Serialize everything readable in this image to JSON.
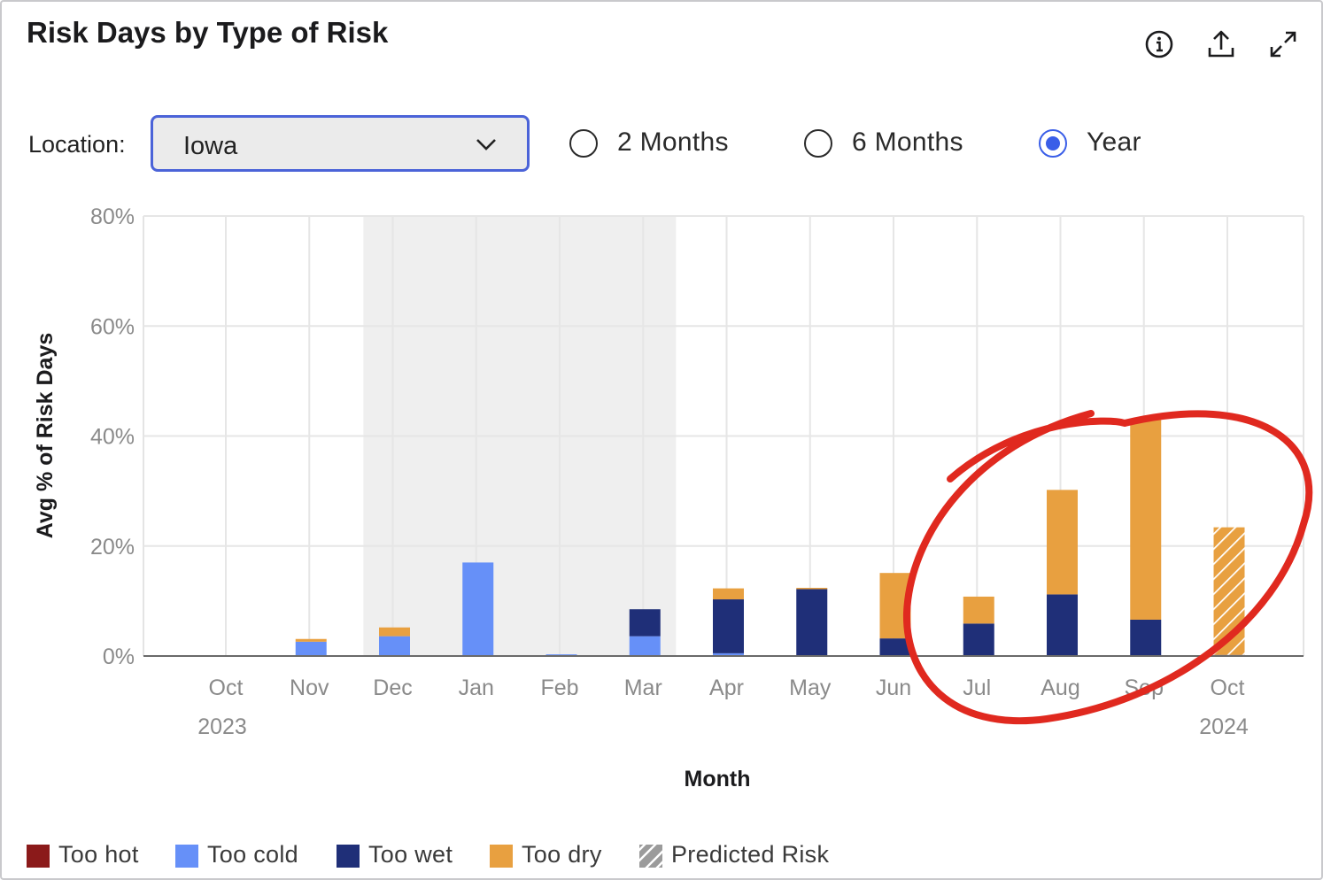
{
  "title": "Risk Days by Type of Risk",
  "header_icons": [
    "info-icon",
    "export-icon",
    "expand-icon"
  ],
  "location": {
    "label": "Location:",
    "value": "Iowa"
  },
  "ranges": [
    {
      "label": "2 Months",
      "selected": false
    },
    {
      "label": "6 Months",
      "selected": false
    },
    {
      "label": "Year",
      "selected": true
    }
  ],
  "colors": {
    "too_hot": "#8b1a1a",
    "too_cold": "#6690f8",
    "too_wet": "#1f2f78",
    "too_dry": "#e8a040",
    "predicted": "#9b9b9b",
    "shade": "#efefef",
    "annotation": "#e0291f"
  },
  "legend": [
    {
      "label": "Too hot",
      "key": "too_hot"
    },
    {
      "label": "Too cold",
      "key": "too_cold"
    },
    {
      "label": "Too wet",
      "key": "too_wet"
    },
    {
      "label": "Too dry",
      "key": "too_dry"
    },
    {
      "label": "Predicted Risk",
      "key": "predicted"
    }
  ],
  "chart_data": {
    "type": "bar",
    "stacked": true,
    "xlabel": "Month",
    "ylabel": "Avg % of Risk Days",
    "yticks": [
      "0%",
      "20%",
      "40%",
      "60%",
      "80%"
    ],
    "ylim": [
      0,
      80
    ],
    "grid": true,
    "shaded_range": [
      "Dec",
      "Mar"
    ],
    "categories": [
      "Oct",
      "Nov",
      "Dec",
      "Jan",
      "Feb",
      "Mar",
      "Apr",
      "May",
      "Jun",
      "Jul",
      "Aug",
      "Sep",
      "Oct"
    ],
    "year_labels": [
      {
        "index": 0,
        "label": "2023"
      },
      {
        "index": 12,
        "label": "2024"
      }
    ],
    "series": [
      {
        "name": "Too hot",
        "key": "too_hot",
        "values": [
          0,
          0,
          0,
          0,
          0,
          0,
          0,
          0,
          0,
          0,
          0,
          0,
          0
        ]
      },
      {
        "name": "Too cold",
        "key": "too_cold",
        "values": [
          0,
          2.6,
          3.6,
          17,
          0.3,
          3.6,
          0.5,
          0,
          0,
          0,
          0,
          0,
          0
        ]
      },
      {
        "name": "Too wet",
        "key": "too_wet",
        "values": [
          0,
          0,
          0,
          0,
          0,
          4.9,
          9.8,
          12.2,
          3.2,
          5.9,
          11.2,
          6.6,
          0.2
        ]
      },
      {
        "name": "Too dry",
        "key": "too_dry",
        "values": [
          0,
          0.5,
          1.6,
          0,
          0,
          0,
          2.0,
          0.2,
          11.9,
          4.9,
          19.0,
          36.3,
          23.2
        ]
      }
    ],
    "predicted": [
      false,
      false,
      false,
      false,
      false,
      false,
      false,
      false,
      false,
      false,
      false,
      false,
      true
    ],
    "legend_position": "bottom-left",
    "annotation": "hand-drawn red circle around Jul–Oct bars"
  }
}
